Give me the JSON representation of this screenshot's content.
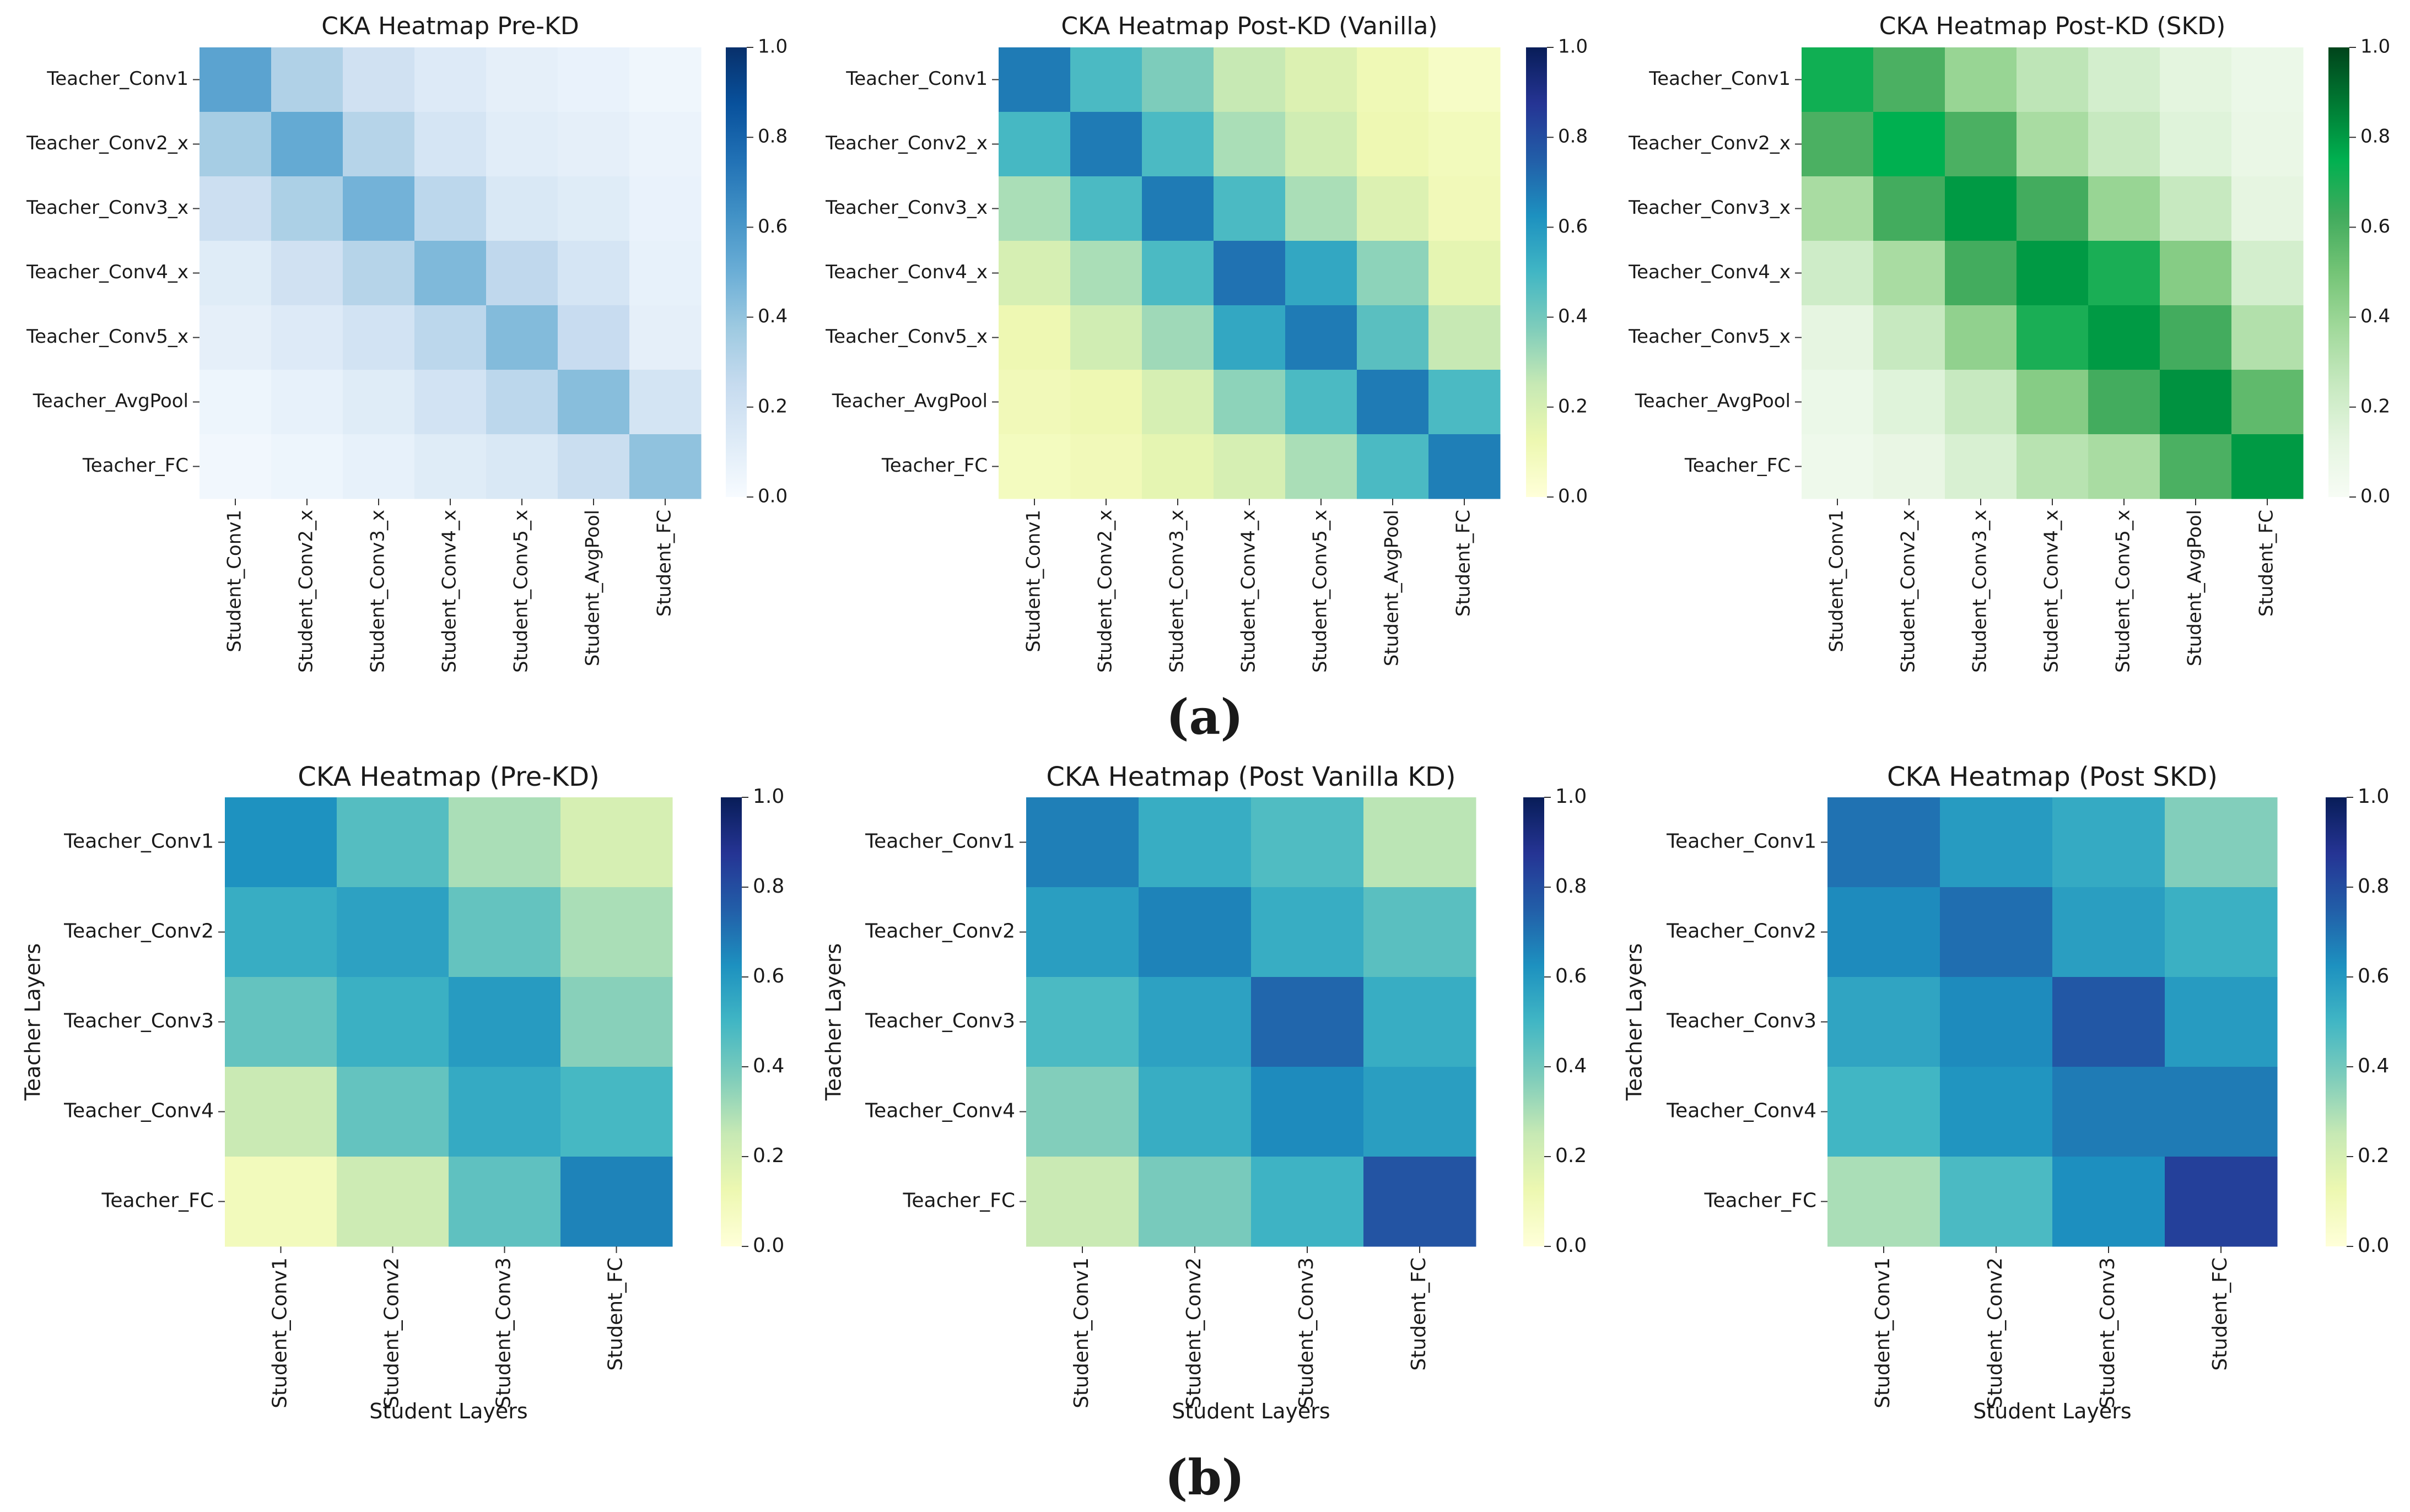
{
  "figure": {
    "label_a": "(a)",
    "label_b": "(b)"
  },
  "chart_data": [
    {
      "type": "heatmap",
      "title": "CKA Heatmap Pre-KD",
      "xlabel": "",
      "ylabel": "",
      "rows": [
        "Teacher_Conv1",
        "Teacher_Conv2_x",
        "Teacher_Conv3_x",
        "Teacher_Conv4_x",
        "Teacher_Conv5_x",
        "Teacher_AvgPool",
        "Teacher_FC"
      ],
      "cols": [
        "Student_Conv1",
        "Student_Conv2_x",
        "Student_Conv3_x",
        "Student_Conv4_x",
        "Student_Conv5_x",
        "Student_AvgPool",
        "Student_FC"
      ],
      "values": [
        [
          0.55,
          0.32,
          0.2,
          0.13,
          0.09,
          0.07,
          0.04
        ],
        [
          0.35,
          0.52,
          0.3,
          0.17,
          0.11,
          0.09,
          0.06
        ],
        [
          0.22,
          0.33,
          0.48,
          0.28,
          0.15,
          0.12,
          0.07
        ],
        [
          0.12,
          0.2,
          0.3,
          0.45,
          0.27,
          0.17,
          0.08
        ],
        [
          0.09,
          0.13,
          0.19,
          0.28,
          0.44,
          0.24,
          0.09
        ],
        [
          0.05,
          0.08,
          0.12,
          0.19,
          0.28,
          0.43,
          0.18
        ],
        [
          0.03,
          0.05,
          0.08,
          0.12,
          0.15,
          0.23,
          0.41
        ]
      ],
      "colorbar": {
        "min": 0.0,
        "max": 1.0,
        "ticks": [
          "0.0",
          "0.2",
          "0.4",
          "0.6",
          "0.8",
          "1.0"
        ]
      },
      "colormap": "Blues",
      "colors": [
        "#f7fbff",
        "#deebf7",
        "#c6dbef",
        "#9ecae1",
        "#6baed6",
        "#4292c6",
        "#2171b5",
        "#08519c",
        "#08306b"
      ]
    },
    {
      "type": "heatmap",
      "title": "CKA Heatmap Post-KD (Vanilla)",
      "xlabel": "",
      "ylabel": "",
      "rows": [
        "Teacher_Conv1",
        "Teacher_Conv2_x",
        "Teacher_Conv3_x",
        "Teacher_Conv4_x",
        "Teacher_Conv5_x",
        "Teacher_AvgPool",
        "Teacher_FC"
      ],
      "cols": [
        "Student_Conv1",
        "Student_Conv2_x",
        "Student_Conv3_x",
        "Student_Conv4_x",
        "Student_Conv5_x",
        "Student_AvgPool",
        "Student_FC"
      ],
      "values": [
        [
          0.68,
          0.48,
          0.38,
          0.25,
          0.18,
          0.11,
          0.06
        ],
        [
          0.49,
          0.68,
          0.48,
          0.3,
          0.22,
          0.12,
          0.09
        ],
        [
          0.3,
          0.48,
          0.68,
          0.48,
          0.3,
          0.18,
          0.1
        ],
        [
          0.2,
          0.3,
          0.48,
          0.7,
          0.55,
          0.35,
          0.15
        ],
        [
          0.12,
          0.22,
          0.32,
          0.55,
          0.68,
          0.45,
          0.25
        ],
        [
          0.1,
          0.12,
          0.2,
          0.35,
          0.48,
          0.68,
          0.48
        ],
        [
          0.08,
          0.1,
          0.15,
          0.2,
          0.3,
          0.48,
          0.67
        ]
      ],
      "colorbar": {
        "min": 0.0,
        "max": 1.0,
        "ticks": [
          "0.0",
          "0.2",
          "0.4",
          "0.6",
          "0.8",
          "1.0"
        ]
      },
      "colormap": "YlGnBu",
      "colors": [
        "#ffffd9",
        "#edf8b1",
        "#c7e9b4",
        "#7fcdbb",
        "#41b6c4",
        "#1d91c0",
        "#225ea8",
        "#253494",
        "#081d58"
      ]
    },
    {
      "type": "heatmap",
      "title": "CKA Heatmap Post-KD (SKD)",
      "xlabel": "",
      "ylabel": "",
      "rows": [
        "Teacher_Conv1",
        "Teacher_Conv2_x",
        "Teacher_Conv3_x",
        "Teacher_Conv4_x",
        "Teacher_Conv5_x",
        "Teacher_AvgPool",
        "Teacher_FC"
      ],
      "cols": [
        "Student_Conv1",
        "Student_Conv2_x",
        "Student_Conv3_x",
        "Student_Conv4_x",
        "Student_Conv5_x",
        "Student_AvgPool",
        "Student_FC"
      ],
      "values": [
        [
          0.72,
          0.6,
          0.4,
          0.28,
          0.2,
          0.13,
          0.08
        ],
        [
          0.6,
          0.75,
          0.6,
          0.35,
          0.25,
          0.15,
          0.09
        ],
        [
          0.35,
          0.62,
          0.8,
          0.62,
          0.4,
          0.25,
          0.12
        ],
        [
          0.22,
          0.35,
          0.62,
          0.8,
          0.7,
          0.45,
          0.2
        ],
        [
          0.12,
          0.25,
          0.42,
          0.7,
          0.8,
          0.62,
          0.32
        ],
        [
          0.08,
          0.15,
          0.25,
          0.45,
          0.62,
          0.82,
          0.55
        ],
        [
          0.06,
          0.1,
          0.18,
          0.3,
          0.35,
          0.6,
          0.8
        ]
      ],
      "colorbar": {
        "min": 0.0,
        "max": 1.0,
        "ticks": [
          "0.0",
          "0.2",
          "0.4",
          "0.6",
          "0.8",
          "1.0"
        ]
      },
      "colormap": "Greens",
      "colors": [
        "#f7fcf5",
        "#e5f5e0",
        "#c7e9c0",
        "#a1d99b",
        "#74c476",
        "#41ab5d",
        "#00b050",
        "#007a33",
        "#00441b"
      ]
    },
    {
      "type": "heatmap",
      "title": "CKA Heatmap (Pre-KD)",
      "xlabel": "Student Layers",
      "ylabel": "Teacher Layers",
      "rows": [
        "Teacher_Conv1",
        "Teacher_Conv2",
        "Teacher_Conv3",
        "Teacher_Conv4",
        "Teacher_FC"
      ],
      "cols": [
        "Student_Conv1",
        "Student_Conv2",
        "Student_Conv3",
        "Student_FC"
      ],
      "values": [
        [
          0.62,
          0.46,
          0.3,
          0.2
        ],
        [
          0.53,
          0.57,
          0.43,
          0.3
        ],
        [
          0.43,
          0.52,
          0.59,
          0.36
        ],
        [
          0.24,
          0.43,
          0.54,
          0.49
        ],
        [
          0.09,
          0.23,
          0.44,
          0.66
        ]
      ],
      "colorbar": {
        "min": 0.0,
        "max": 1.0,
        "ticks": [
          "0.0",
          "0.2",
          "0.4",
          "0.6",
          "0.8",
          "1.0"
        ]
      },
      "colormap": "YlGnBu",
      "colors": [
        "#ffffd9",
        "#edf8b1",
        "#c7e9b4",
        "#7fcdbb",
        "#41b6c4",
        "#1d91c0",
        "#225ea8",
        "#253494",
        "#081d58"
      ]
    },
    {
      "type": "heatmap",
      "title": "CKA Heatmap (Post Vanilla KD)",
      "xlabel": "Student Layers",
      "ylabel": "Teacher Layers",
      "rows": [
        "Teacher_Conv1",
        "Teacher_Conv2",
        "Teacher_Conv3",
        "Teacher_Conv4",
        "Teacher_FC"
      ],
      "cols": [
        "Student_Conv1",
        "Student_Conv2",
        "Student_Conv3",
        "Student_FC"
      ],
      "values": [
        [
          0.67,
          0.53,
          0.47,
          0.27
        ],
        [
          0.58,
          0.66,
          0.53,
          0.45
        ],
        [
          0.48,
          0.57,
          0.73,
          0.53
        ],
        [
          0.37,
          0.53,
          0.64,
          0.58
        ],
        [
          0.24,
          0.39,
          0.51,
          0.78
        ]
      ],
      "colorbar": {
        "min": 0.0,
        "max": 1.0,
        "ticks": [
          "0.0",
          "0.2",
          "0.4",
          "0.6",
          "0.8",
          "1.0"
        ]
      },
      "colormap": "YlGnBu",
      "colors": [
        "#ffffd9",
        "#edf8b1",
        "#c7e9b4",
        "#7fcdbb",
        "#41b6c4",
        "#1d91c0",
        "#225ea8",
        "#253494",
        "#081d58"
      ]
    },
    {
      "type": "heatmap",
      "title": "CKA Heatmap (Post SKD)",
      "xlabel": "Student Layers",
      "ylabel": "Teacher Layers",
      "rows": [
        "Teacher_Conv1",
        "Teacher_Conv2",
        "Teacher_Conv3",
        "Teacher_Conv4",
        "Teacher_FC"
      ],
      "cols": [
        "Student_Conv1",
        "Student_Conv2",
        "Student_Conv3",
        "Student_FC"
      ],
      "values": [
        [
          0.7,
          0.59,
          0.54,
          0.37
        ],
        [
          0.64,
          0.71,
          0.58,
          0.52
        ],
        [
          0.56,
          0.64,
          0.77,
          0.59
        ],
        [
          0.5,
          0.61,
          0.68,
          0.68
        ],
        [
          0.3,
          0.48,
          0.63,
          0.84
        ]
      ],
      "colorbar": {
        "min": 0.0,
        "max": 1.0,
        "ticks": [
          "0.0",
          "0.2",
          "0.4",
          "0.6",
          "0.8",
          "1.0"
        ]
      },
      "colormap": "YlGnBu",
      "colors": [
        "#ffffd9",
        "#edf8b1",
        "#c7e9b4",
        "#7fcdbb",
        "#41b6c4",
        "#1d91c0",
        "#225ea8",
        "#253494",
        "#081d58"
      ]
    }
  ]
}
